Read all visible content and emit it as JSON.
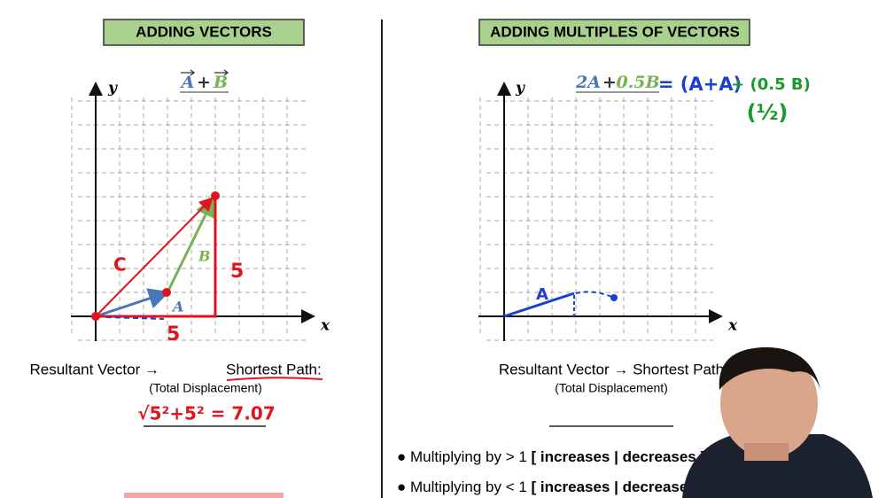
{
  "left": {
    "title": "ADDING VECTORS",
    "formula": {
      "a": "A",
      "plus": "+",
      "b": "B"
    },
    "axes": {
      "x": "x",
      "y": "y"
    },
    "labels": {
      "c": "C",
      "b": "B",
      "a": "A",
      "side_v": "5",
      "side_h": "5"
    },
    "resultant": "Resultant Vector →",
    "shortest": "Shortest Path:",
    "displacement": "(Total Displacement)",
    "calc": "√5²+5² = 7.07"
  },
  "right": {
    "title": "ADDING MULTIPLES OF VECTORS",
    "formula": {
      "a": "2A",
      "plus": "+",
      "b": "0.5B"
    },
    "handwritten": {
      "first": "= (A+A)",
      "second": "+ (0.5 B)",
      "half": "(½)",
      "a": "A"
    },
    "axes": {
      "x": "x",
      "y": "y"
    },
    "resultant": "Resultant Vector → Shortest Path",
    "displacement": "(Total Displacement)",
    "bullets": [
      {
        "text": "● Multiplying by > 1",
        "choice": "[ increases | decreases ]"
      },
      {
        "text": "● Multiplying by < 1",
        "choice": "[ increases | decreases ]"
      }
    ]
  }
}
